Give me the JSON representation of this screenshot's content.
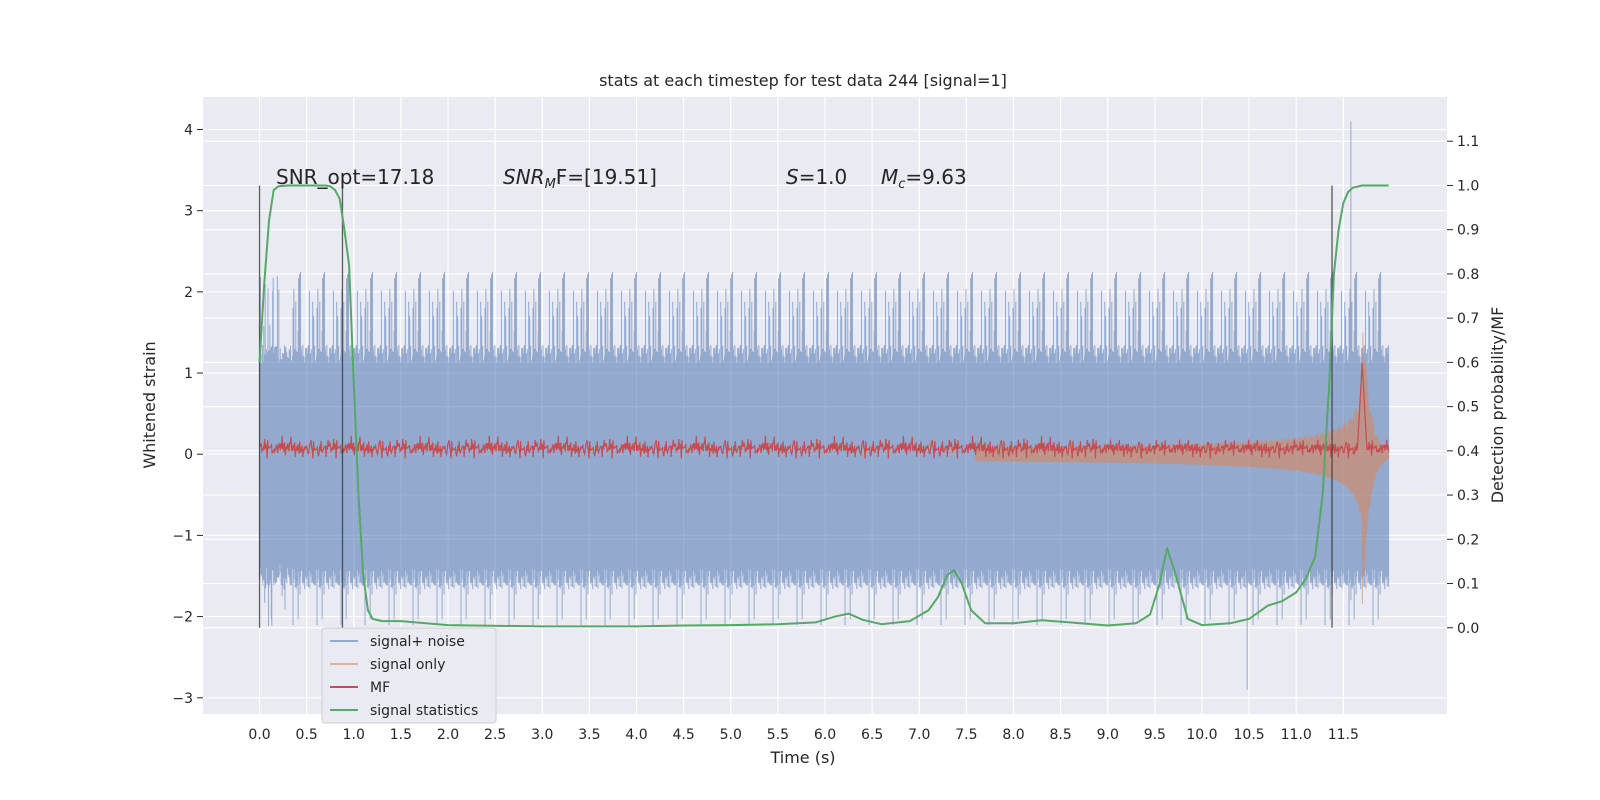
{
  "chart_data": {
    "type": "line",
    "title": "stats at each timestep for test data 244 [signal=1]",
    "xlabel": "Time (s)",
    "ylabel": "Whitened strain",
    "y2label": "Detection probability/MF",
    "xlim": [
      -0.6,
      12.6
    ],
    "ylim": [
      -3.2,
      4.4
    ],
    "y2lim": [
      -0.195,
      1.2
    ],
    "grid": true,
    "legend_position": "lower-left",
    "xticks": [
      "0.0",
      "0.5",
      "1.0",
      "1.5",
      "2.0",
      "2.5",
      "3.0",
      "3.5",
      "4.0",
      "4.5",
      "5.0",
      "5.5",
      "6.0",
      "6.5",
      "7.0",
      "7.5",
      "8.0",
      "8.5",
      "9.0",
      "9.5",
      "10.0",
      "10.5",
      "11.0",
      "11.5"
    ],
    "yticks": [
      "4",
      "3",
      "2",
      "1",
      "0",
      "−1",
      "−2",
      "−3"
    ],
    "y2ticks": [
      "1.1",
      "1.0",
      "0.9",
      "0.8",
      "0.7",
      "0.6",
      "0.5",
      "0.4",
      "0.3",
      "0.2",
      "0.1",
      "0.0"
    ],
    "annotations": {
      "snr_opt": "SNR_opt=17.18",
      "snr_mf_label": "SNR",
      "snr_mf_sub": "M",
      "snr_mf_rest": "F=[19.51]",
      "s_label": "S",
      "s_value": "=1.0",
      "mc_label": "M",
      "mc_sub": "c",
      "mc_value": "=9.63"
    },
    "vertical_markers": [
      0.0,
      0.88,
      11.38
    ],
    "series": [
      {
        "name": "signal+ noise",
        "color": "#4c72b0",
        "opacity": 0.55,
        "kind": "noise",
        "range": [
          0.0,
          11.98
        ],
        "envelope_min": -2.9,
        "envelope_max": 4.1,
        "typical_amplitude": 1.15
      },
      {
        "name": "signal only",
        "color": "#dd8452",
        "opacity": 0.55,
        "kind": "chirp",
        "range": [
          7.6,
          11.98
        ],
        "peak_time": 11.7,
        "peak_amplitude": 1.9
      },
      {
        "name": "MF",
        "color": "#c44e52",
        "axis": "right",
        "kind": "mf",
        "range": [
          0.0,
          11.98
        ],
        "baseline": 0.405,
        "peak_time": 11.7,
        "peak_value": 0.6
      },
      {
        "name": "signal statistics",
        "color": "#55a868",
        "axis": "right",
        "kind": "curve",
        "x": [
          0.0,
          0.05,
          0.1,
          0.15,
          0.2,
          0.3,
          0.4,
          0.5,
          0.6,
          0.7,
          0.75,
          0.8,
          0.85,
          0.9,
          0.95,
          1.0,
          1.05,
          1.1,
          1.15,
          1.2,
          1.3,
          1.5,
          2.0,
          3.0,
          4.0,
          4.5,
          5.0,
          5.5,
          5.9,
          6.1,
          6.25,
          6.4,
          6.6,
          6.9,
          7.1,
          7.2,
          7.3,
          7.37,
          7.45,
          7.55,
          7.7,
          8.0,
          8.3,
          8.6,
          9.0,
          9.3,
          9.45,
          9.55,
          9.63,
          9.72,
          9.85,
          10.0,
          10.3,
          10.5,
          10.7,
          10.85,
          11.0,
          11.1,
          11.2,
          11.28,
          11.35,
          11.4,
          11.45,
          11.5,
          11.55,
          11.6,
          11.7,
          11.8,
          11.9,
          11.98
        ],
        "y": [
          0.6,
          0.78,
          0.92,
          0.99,
          0.998,
          1.0,
          1.0,
          1.0,
          1.0,
          1.0,
          0.998,
          0.99,
          0.97,
          0.9,
          0.82,
          0.55,
          0.3,
          0.12,
          0.04,
          0.02,
          0.015,
          0.015,
          0.006,
          0.003,
          0.003,
          0.005,
          0.006,
          0.008,
          0.012,
          0.025,
          0.032,
          0.018,
          0.008,
          0.015,
          0.04,
          0.07,
          0.12,
          0.13,
          0.1,
          0.04,
          0.01,
          0.01,
          0.017,
          0.012,
          0.005,
          0.01,
          0.03,
          0.1,
          0.18,
          0.12,
          0.02,
          0.006,
          0.01,
          0.02,
          0.05,
          0.06,
          0.08,
          0.11,
          0.16,
          0.3,
          0.55,
          0.8,
          0.9,
          0.96,
          0.985,
          0.995,
          1.0,
          1.0,
          1.0,
          1.0
        ]
      }
    ]
  }
}
